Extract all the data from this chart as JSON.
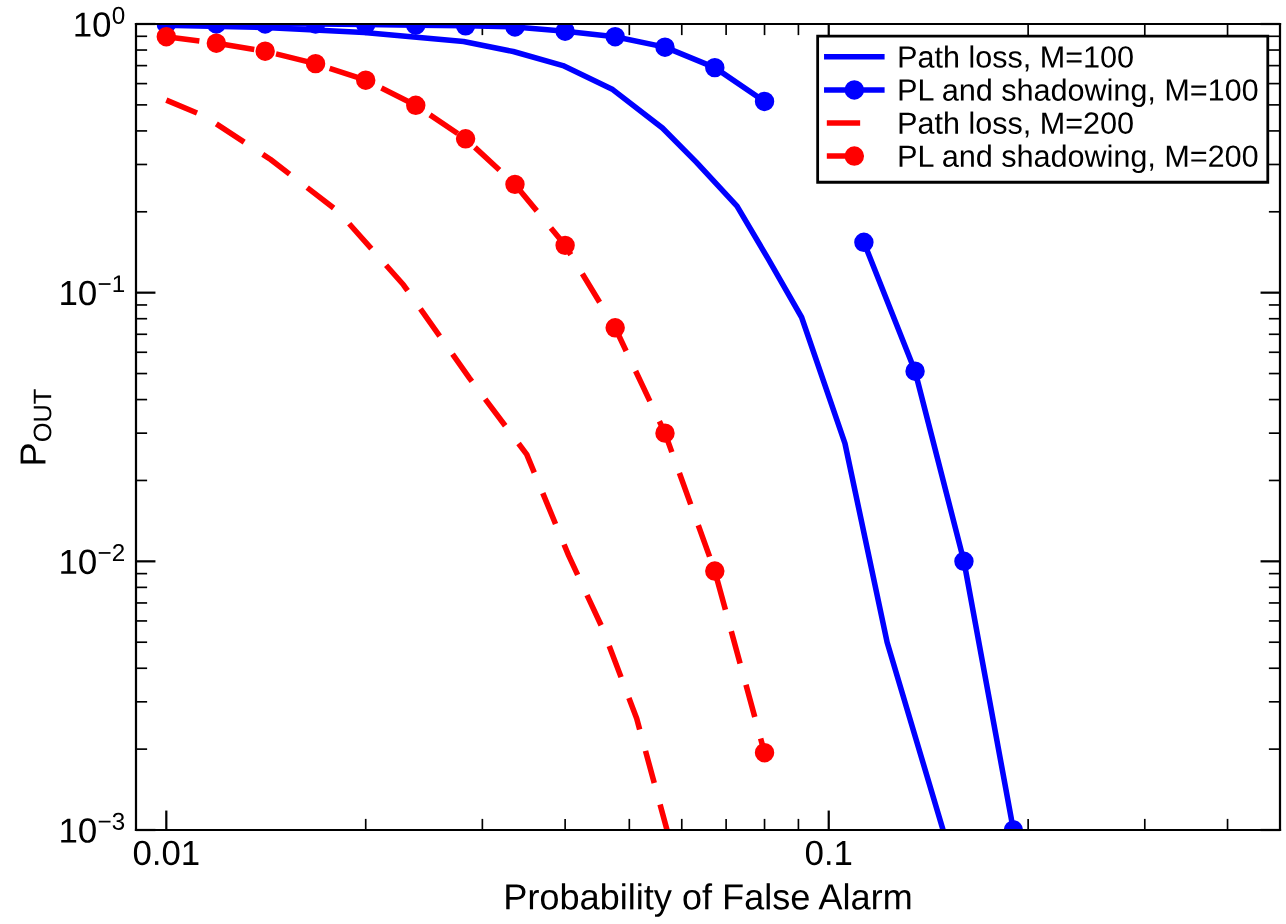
{
  "chart_data": {
    "type": "line",
    "xlabel": "Probability of False Alarm",
    "ylabel": "P$_{OUT}$",
    "log": "xy",
    "xlim": [
      0.009,
      0.48
    ],
    "ylim": [
      0.001,
      1
    ],
    "xticks": [
      0.01,
      0.1
    ],
    "yticks": [
      {
        "value": 0.001,
        "label": "10$^{−3}$"
      },
      {
        "value": 0.01,
        "label": "10$^{−2}$"
      },
      {
        "value": 0.1,
        "label": "10$^{−1}$"
      },
      {
        "value": 1,
        "label": "10$^{0}$"
      }
    ],
    "grid": false,
    "legend": "top right",
    "series": [
      {
        "name": "Path loss, M=100",
        "color": "#0000ff",
        "line_style": "solid",
        "marker": "none",
        "x": [
          0.01,
          0.01408,
          0.01989,
          0.0281,
          0.0334,
          0.0397,
          0.0472,
          0.0561,
          0.0631,
          0.0727,
          0.0811,
          0.091,
          0.1058,
          0.1225,
          0.1488
        ],
        "values": [
          0.99,
          0.97,
          0.93,
          0.86,
          0.79,
          0.7,
          0.57,
          0.41,
          0.306,
          0.21,
          0.133,
          0.081,
          0.0275,
          0.005,
          0.001
        ]
      },
      {
        "name": "PL and shadowing, M=100",
        "color": "#0000ff",
        "line_style": "solid",
        "marker": "circle",
        "x": [
          0.01,
          0.0119,
          0.0141,
          0.0168,
          0.02,
          0.0238,
          0.0283,
          0.0336,
          0.04,
          0.0476,
          0.0566,
          0.0673,
          0.08,
          0.0951,
          0.113,
          0.135,
          0.16,
          0.19
        ],
        "values": [
          1.0,
          1.0,
          1.0,
          1.0,
          0.995,
          0.99,
          0.985,
          0.975,
          0.94,
          0.897,
          0.82,
          0.688,
          0.515,
          null,
          0.154,
          0.051,
          0.01,
          0.001
        ]
      },
      {
        "name": "Path loss, M=200",
        "color": "#ff0000",
        "line_style": "dashed",
        "marker": "none",
        "x": [
          0.01,
          0.01144,
          0.01437,
          0.0182,
          0.0228,
          0.0287,
          0.035,
          0.0405,
          0.0456,
          0.0513,
          0.057
        ],
        "values": [
          0.521,
          0.453,
          0.313,
          0.2,
          0.107,
          0.048,
          0.025,
          0.0105,
          0.0056,
          0.0026,
          0.001
        ]
      },
      {
        "name": "PL and shadowing, M=200",
        "color": "#ff0000",
        "line_style": "dashed",
        "marker": "circle",
        "x": [
          0.01,
          0.0119,
          0.0141,
          0.0168,
          0.02,
          0.0238,
          0.0283,
          0.0336,
          0.04,
          0.0476,
          0.0566,
          0.0673,
          0.08
        ],
        "values": [
          0.897,
          0.848,
          0.792,
          0.712,
          0.618,
          0.498,
          0.374,
          0.253,
          0.15,
          0.074,
          0.03,
          0.0092,
          0.00194
        ]
      }
    ]
  }
}
